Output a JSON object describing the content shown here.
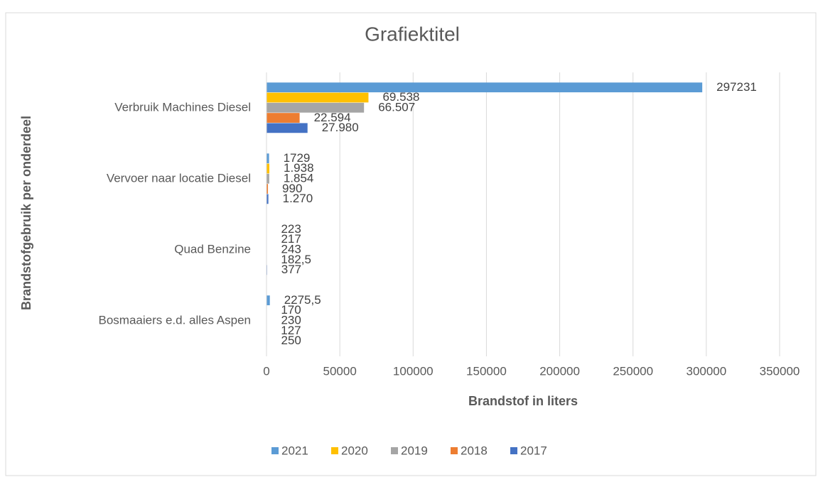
{
  "chart_data": {
    "type": "bar",
    "orientation": "horizontal",
    "title": "Grafiektitel",
    "x_label": "Brandstof in liters",
    "y_label": "Brandstofgebruik per onderdeel",
    "categories": [
      "Verbruik Machines Diesel",
      "Vervoer naar locatie Diesel",
      "Quad Benzine",
      "Bosmaaiers e.d. alles Aspen"
    ],
    "series": [
      {
        "name": "2021",
        "color": "#5b9bd5",
        "values": [
          297231,
          1729,
          223,
          2275.5
        ],
        "value_labels": [
          "297231",
          "1729",
          "223",
          "2275,5"
        ]
      },
      {
        "name": "2020",
        "color": "#ffc000",
        "values": [
          69538,
          1938,
          217,
          170
        ],
        "value_labels": [
          "69.538",
          "1.938",
          "217",
          "170"
        ]
      },
      {
        "name": "2019",
        "color": "#a5a5a5",
        "values": [
          66507,
          1854,
          243,
          230
        ],
        "value_labels": [
          "66.507",
          "1.854",
          "243",
          "230"
        ]
      },
      {
        "name": "2018",
        "color": "#ed7d31",
        "values": [
          22594,
          990,
          182.5,
          127
        ],
        "value_labels": [
          "22.594",
          "990",
          "182,5",
          "127"
        ]
      },
      {
        "name": "2017",
        "color": "#4472c4",
        "values": [
          27980,
          1270,
          377,
          250
        ],
        "value_labels": [
          "27.980",
          "1.270",
          "377",
          "250"
        ]
      }
    ],
    "xlim": [
      0,
      350000
    ],
    "xticks": [
      0,
      50000,
      100000,
      150000,
      200000,
      250000,
      300000,
      350000
    ],
    "grid": true,
    "legend": "bottom"
  }
}
